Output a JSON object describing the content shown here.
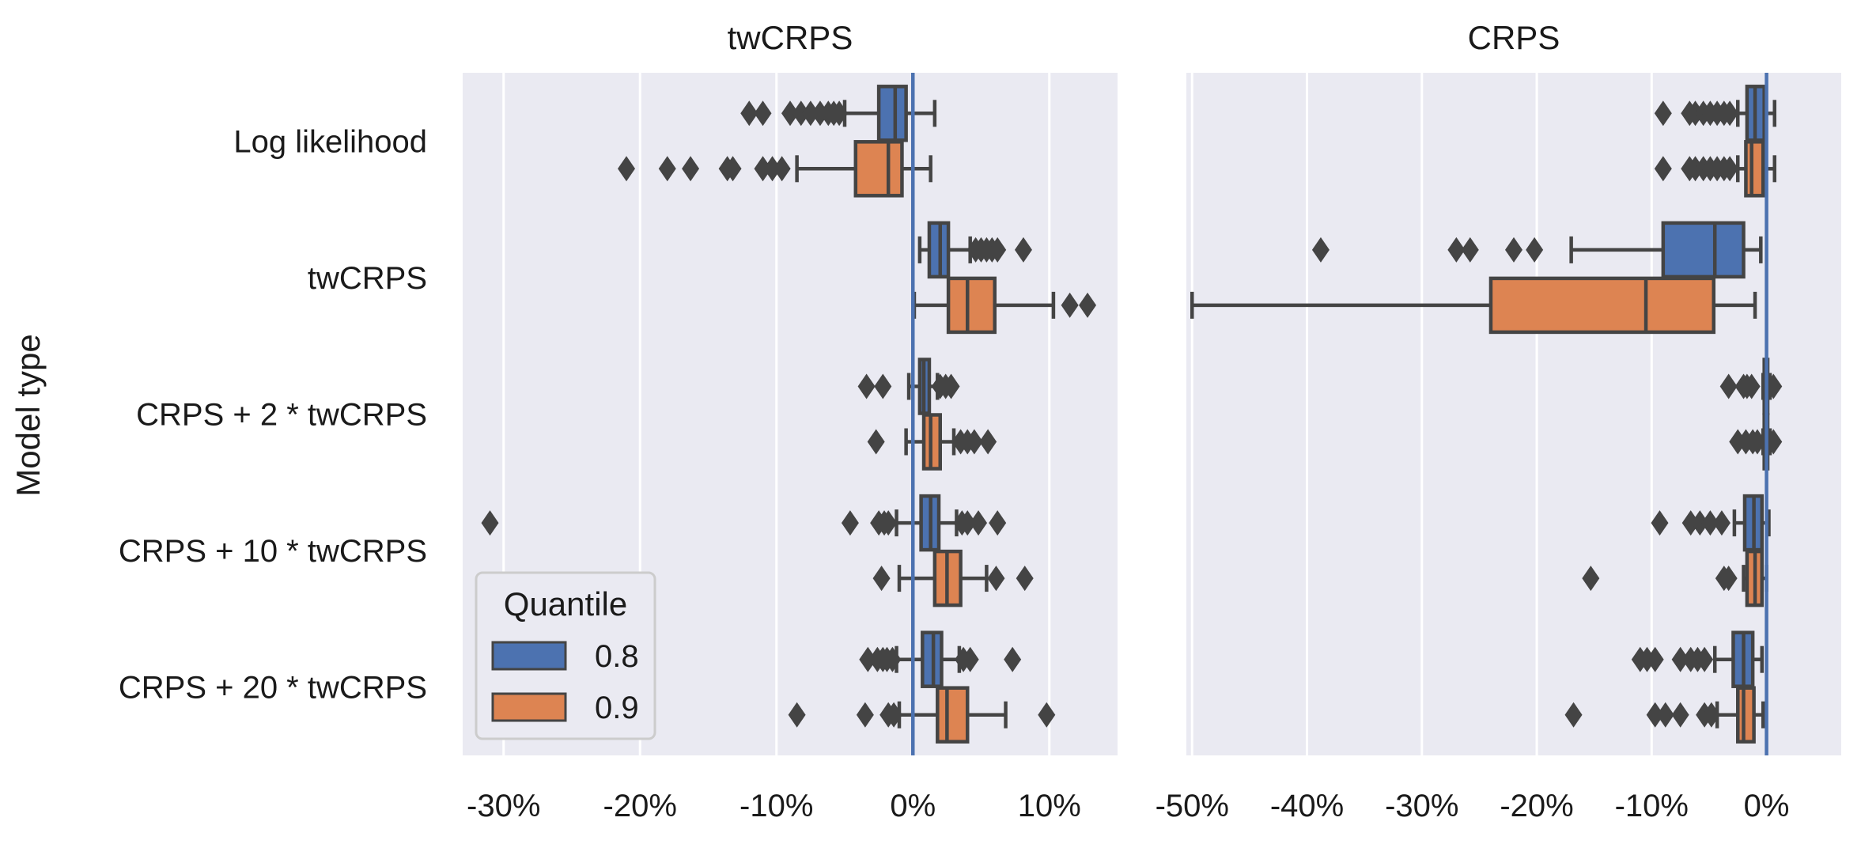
{
  "chart_data": {
    "type": "boxplot",
    "ylabel": "Model type",
    "categories": [
      "Log likelihood",
      "twCRPS",
      "CRPS + 2 * twCRPS",
      "CRPS + 10 * twCRPS",
      "CRPS + 20 * twCRPS"
    ],
    "legend": {
      "title": "Quantile",
      "position": "lower-left",
      "entries": [
        {
          "label": "0.8",
          "color": "#4c72b0"
        },
        {
          "label": "0.9",
          "color": "#dd8452"
        }
      ]
    },
    "hue_order": [
      "0.8",
      "0.9"
    ],
    "reference_line": 0,
    "grid": true,
    "panels": [
      {
        "title": "twCRPS",
        "xlim": [
          -33,
          15
        ],
        "xticks": [
          -30,
          -20,
          -10,
          0,
          10
        ],
        "xtick_labels": [
          "-30%",
          "-20%",
          "-10%",
          "0%",
          "10%"
        ],
        "boxes": [
          {
            "category": "Log likelihood",
            "hue": "0.8",
            "whislo": -5.0,
            "q1": -2.5,
            "med": -1.3,
            "q3": -0.5,
            "whishi": 1.6,
            "fliers": [
              -12.0,
              -11.0,
              -9.0,
              -8.2,
              -7.5,
              -6.8,
              -6.2,
              -5.8,
              -5.4
            ]
          },
          {
            "category": "Log likelihood",
            "hue": "0.9",
            "whislo": -8.5,
            "q1": -4.2,
            "med": -1.8,
            "q3": -0.8,
            "whishi": 1.3,
            "fliers": [
              -21.0,
              -18.0,
              -16.3,
              -13.6,
              -13.2,
              -11.0,
              -10.3,
              -9.6
            ]
          },
          {
            "category": "twCRPS",
            "hue": "0.8",
            "whislo": 0.5,
            "q1": 1.2,
            "med": 2.0,
            "q3": 2.6,
            "whishi": 4.2,
            "fliers": [
              4.6,
              5.0,
              5.4,
              5.8,
              6.2,
              8.1
            ]
          },
          {
            "category": "twCRPS",
            "hue": "0.9",
            "whislo": 0.1,
            "q1": 2.6,
            "med": 4.0,
            "q3": 6.0,
            "whishi": 10.3,
            "fliers": [
              11.5,
              12.8
            ]
          },
          {
            "category": "CRPS + 2 * twCRPS",
            "hue": "0.8",
            "whislo": -0.3,
            "q1": 0.5,
            "med": 0.8,
            "q3": 1.2,
            "whishi": 1.8,
            "fliers": [
              -3.4,
              -2.2,
              2.0,
              2.4,
              2.8
            ]
          },
          {
            "category": "CRPS + 2 * twCRPS",
            "hue": "0.9",
            "whislo": -0.5,
            "q1": 0.8,
            "med": 1.3,
            "q3": 2.0,
            "whishi": 3.0,
            "fliers": [
              -2.7,
              3.5,
              4.0,
              4.5,
              5.5
            ]
          },
          {
            "category": "CRPS + 10 * twCRPS",
            "hue": "0.8",
            "whislo": -1.2,
            "q1": 0.6,
            "med": 1.3,
            "q3": 1.9,
            "whishi": 3.2,
            "fliers": [
              -31.0,
              -4.6,
              -2.5,
              -2.1,
              -1.8,
              3.6,
              4.0,
              4.8,
              6.2
            ]
          },
          {
            "category": "CRPS + 10 * twCRPS",
            "hue": "0.9",
            "whislo": -1.0,
            "q1": 1.6,
            "med": 2.5,
            "q3": 3.5,
            "whishi": 5.4,
            "fliers": [
              -2.3,
              6.1,
              8.2
            ]
          },
          {
            "category": "CRPS + 20 * twCRPS",
            "hue": "0.8",
            "whislo": -1.2,
            "q1": 0.7,
            "med": 1.5,
            "q3": 2.1,
            "whishi": 3.4,
            "fliers": [
              -3.3,
              -2.6,
              -2.2,
              -1.9,
              -1.5,
              3.7,
              4.2,
              7.3
            ]
          },
          {
            "category": "CRPS + 20 * twCRPS",
            "hue": "0.9",
            "whislo": -1.0,
            "q1": 1.8,
            "med": 2.5,
            "q3": 4.0,
            "whishi": 6.8,
            "fliers": [
              -8.5,
              -3.5,
              -1.8,
              -1.4,
              9.8
            ]
          }
        ]
      },
      {
        "title": "CRPS",
        "xlim": [
          -50.5,
          6.5
        ],
        "xticks": [
          -50,
          -40,
          -30,
          -20,
          -10,
          0
        ],
        "xtick_labels": [
          "-50%",
          "-40%",
          "-30%",
          "-20%",
          "-10%",
          "0%"
        ],
        "boxes": [
          {
            "category": "Log likelihood",
            "hue": "0.8",
            "whislo": -2.5,
            "q1": -1.7,
            "med": -1.0,
            "q3": -0.2,
            "whishi": 0.7,
            "fliers": [
              -9.0,
              -6.7,
              -6.2,
              -5.5,
              -4.9,
              -4.3,
              -3.7,
              -3.2
            ]
          },
          {
            "category": "Log likelihood",
            "hue": "0.9",
            "whislo": -2.5,
            "q1": -1.8,
            "med": -1.3,
            "q3": -0.3,
            "whishi": 0.7,
            "fliers": [
              -9.0,
              -6.7,
              -6.2,
              -5.5,
              -4.9,
              -4.3,
              -3.7,
              -3.2
            ]
          },
          {
            "category": "twCRPS",
            "hue": "0.8",
            "whislo": -17.0,
            "q1": -9.0,
            "med": -4.5,
            "q3": -2.0,
            "whishi": -0.5,
            "fliers": [
              -38.8,
              -27.0,
              -25.8,
              -22.0,
              -20.2
            ]
          },
          {
            "category": "twCRPS",
            "hue": "0.9",
            "whislo": -50.0,
            "q1": -24.0,
            "med": -10.5,
            "q3": -4.6,
            "whishi": -1.0,
            "fliers": []
          },
          {
            "category": "CRPS + 2 * twCRPS",
            "hue": "0.8",
            "whislo": -0.3,
            "q1": -0.2,
            "med": 0.0,
            "q3": 0.1,
            "whishi": 0.3,
            "fliers": [
              -3.3,
              -2.0,
              -1.7,
              -1.3,
              0.6
            ]
          },
          {
            "category": "CRPS + 2 * twCRPS",
            "hue": "0.9",
            "whislo": -0.3,
            "q1": -0.2,
            "med": 0.0,
            "q3": 0.1,
            "whishi": 0.3,
            "fliers": [
              -2.5,
              -1.8,
              -1.2,
              -0.8,
              0.6
            ]
          },
          {
            "category": "CRPS + 10 * twCRPS",
            "hue": "0.8",
            "whislo": -2.8,
            "q1": -1.9,
            "med": -1.1,
            "q3": -0.4,
            "whishi": 0.2,
            "fliers": [
              -9.3,
              -6.6,
              -5.8,
              -4.9,
              -3.9
            ]
          },
          {
            "category": "CRPS + 10 * twCRPS",
            "hue": "0.9",
            "whislo": -2.0,
            "q1": -1.7,
            "med": -1.0,
            "q3": -0.4,
            "whishi": 0.0,
            "fliers": [
              -15.3,
              -3.7,
              -3.3
            ]
          },
          {
            "category": "CRPS + 20 * twCRPS",
            "hue": "0.8",
            "whislo": -4.5,
            "q1": -2.9,
            "med": -2.0,
            "q3": -1.2,
            "whishi": -0.4,
            "fliers": [
              -11.0,
              -10.4,
              -9.7,
              -7.5,
              -6.6,
              -6.0,
              -5.4
            ]
          },
          {
            "category": "CRPS + 20 * twCRPS",
            "hue": "0.9",
            "whislo": -4.3,
            "q1": -2.5,
            "med": -2.0,
            "q3": -1.1,
            "whishi": -0.3,
            "fliers": [
              -16.8,
              -9.7,
              -8.8,
              -7.5,
              -5.4,
              -4.8
            ]
          }
        ]
      }
    ]
  }
}
